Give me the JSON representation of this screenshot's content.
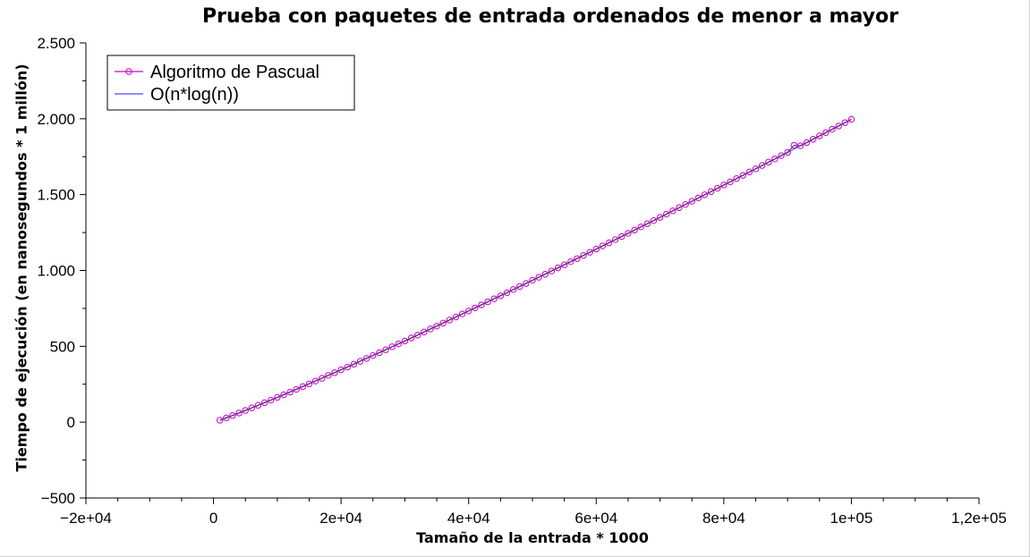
{
  "chart_data": {
    "type": "line",
    "title": "Prueba con paquetes de entrada ordenados de menor a mayor",
    "xlabel": "Tamaño de la entrada * 1000",
    "ylabel": "Tiempo de ejecución (en nanosegundos * 1 millón)",
    "xlim": [
      -20000,
      120000
    ],
    "ylim": [
      -500,
      2500
    ],
    "x_ticks": [
      -20000,
      0,
      20000,
      40000,
      60000,
      80000,
      100000,
      120000
    ],
    "x_tick_labels": [
      "−2e+04",
      "0",
      "2e+04",
      "4e+04",
      "6e+04",
      "8e+04",
      "1e+05",
      "1,2e+05"
    ],
    "y_ticks": [
      -500,
      0,
      500,
      1000,
      1500,
      2000,
      2500
    ],
    "y_tick_labels": [
      "−500",
      "0",
      "500",
      "1.000",
      "1.500",
      "2.000",
      "2.500"
    ],
    "grid": false,
    "legend_position": "top-left",
    "series": [
      {
        "name": "Algoritmo de Pascual",
        "color": "#cc00cc",
        "marker": "circle",
        "x": [
          1000,
          2000,
          3000,
          4000,
          5000,
          6000,
          7000,
          8000,
          9000,
          10000,
          11000,
          12000,
          13000,
          14000,
          15000,
          16000,
          17000,
          18000,
          19000,
          20000,
          21000,
          22000,
          23000,
          24000,
          25000,
          26000,
          27000,
          28000,
          29000,
          30000,
          31000,
          32000,
          33000,
          34000,
          35000,
          36000,
          37000,
          38000,
          39000,
          40000,
          41000,
          42000,
          43000,
          44000,
          45000,
          46000,
          47000,
          48000,
          49000,
          50000,
          51000,
          52000,
          53000,
          54000,
          55000,
          56000,
          57000,
          58000,
          59000,
          60000,
          61000,
          62000,
          63000,
          64000,
          65000,
          66000,
          67000,
          68000,
          69000,
          70000,
          71000,
          72000,
          73000,
          74000,
          75000,
          76000,
          77000,
          78000,
          79000,
          80000,
          81000,
          82000,
          83000,
          84000,
          85000,
          86000,
          87000,
          88000,
          89000,
          90000,
          91000,
          92000,
          93000,
          94000,
          95000,
          96000,
          97000,
          98000,
          99000,
          100000
        ],
        "y": [
          13,
          28,
          44,
          60,
          77,
          94,
          111,
          128,
          145,
          163,
          180,
          198,
          216,
          234,
          252,
          271,
          289,
          308,
          326,
          345,
          363,
          382,
          401,
          420,
          439,
          458,
          477,
          497,
          516,
          535,
          555,
          574,
          594,
          614,
          633,
          653,
          673,
          693,
          713,
          733,
          753,
          773,
          793,
          813,
          833,
          853,
          874,
          894,
          914,
          935,
          955,
          975,
          996,
          1017,
          1037,
          1058,
          1078,
          1099,
          1120,
          1141,
          1162,
          1182,
          1203,
          1224,
          1245,
          1266,
          1287,
          1308,
          1329,
          1350,
          1371,
          1393,
          1414,
          1435,
          1456,
          1478,
          1499,
          1520,
          1542,
          1563,
          1584,
          1606,
          1627,
          1649,
          1670,
          1692,
          1714,
          1735,
          1757,
          1778,
          1825,
          1822,
          1843,
          1865,
          1887,
          1909,
          1931,
          1952,
          1974,
          1996
        ]
      },
      {
        "name": "O(n*log(n))",
        "color": "#6666ff",
        "x": [
          1000,
          5000,
          10000,
          20000,
          30000,
          40000,
          50000,
          60000,
          70000,
          80000,
          90000,
          100000
        ],
        "y": [
          13,
          77,
          163,
          345,
          535,
          733,
          935,
          1141,
          1350,
          1563,
          1778,
          1996
        ]
      }
    ]
  }
}
